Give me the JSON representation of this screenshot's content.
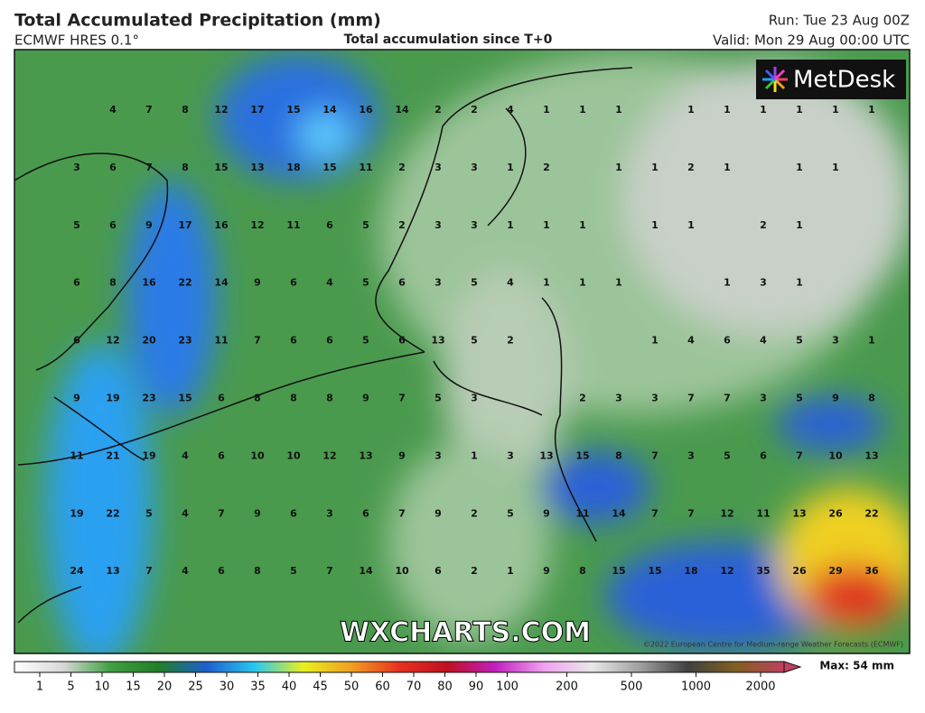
{
  "header": {
    "title": "Total Accumulated Precipitation (mm)",
    "model": "ECMWF HRES 0.1°",
    "subtitle": "Total accumulation since T+0",
    "run": "Run: Tue 23 Aug 00Z",
    "valid": "Valid: Mon 29 Aug 00:00 UTC"
  },
  "logo": "MetDesk",
  "watermark": "WXCHARTS.COM",
  "copyright": "©2022 European Centre for Medium-range Weather Forecasts (ECMWF)",
  "grid": {
    "rows": [
      [
        null,
        4,
        7,
        8,
        12,
        17,
        15,
        14,
        16,
        14,
        2,
        2,
        4,
        1,
        1,
        1,
        null,
        1,
        1,
        1,
        1,
        1,
        1
      ],
      [
        3,
        6,
        7,
        8,
        15,
        13,
        18,
        15,
        11,
        2,
        3,
        3,
        1,
        2,
        null,
        1,
        1,
        2,
        1,
        null,
        1,
        1,
        null
      ],
      [
        5,
        6,
        9,
        17,
        16,
        12,
        11,
        6,
        5,
        2,
        3,
        3,
        1,
        1,
        1,
        null,
        1,
        1,
        null,
        2,
        1,
        null,
        null
      ],
      [
        6,
        8,
        16,
        22,
        14,
        9,
        6,
        4,
        5,
        6,
        3,
        5,
        4,
        1,
        1,
        1,
        null,
        null,
        1,
        3,
        1,
        null,
        null
      ],
      [
        6,
        12,
        20,
        23,
        11,
        7,
        6,
        6,
        5,
        6,
        13,
        5,
        2,
        null,
        null,
        null,
        1,
        4,
        6,
        4,
        5,
        3,
        1
      ],
      [
        9,
        19,
        23,
        15,
        6,
        8,
        8,
        8,
        9,
        7,
        5,
        3,
        null,
        null,
        2,
        3,
        3,
        7,
        7,
        3,
        5,
        9,
        8
      ],
      [
        11,
        21,
        19,
        4,
        6,
        10,
        10,
        12,
        13,
        9,
        3,
        1,
        3,
        13,
        15,
        8,
        7,
        3,
        5,
        6,
        7,
        10,
        13
      ],
      [
        19,
        22,
        5,
        4,
        7,
        9,
        6,
        3,
        6,
        7,
        9,
        2,
        5,
        9,
        11,
        14,
        7,
        7,
        12,
        11,
        13,
        26,
        22
      ],
      [
        24,
        13,
        7,
        4,
        6,
        8,
        5,
        7,
        14,
        10,
        6,
        2,
        1,
        9,
        8,
        15,
        15,
        18,
        12,
        35,
        26,
        29,
        36
      ]
    ]
  },
  "legend": {
    "ticks": [
      1,
      5,
      10,
      15,
      20,
      25,
      30,
      35,
      40,
      45,
      50,
      60,
      70,
      80,
      90,
      100,
      200,
      500,
      1000,
      2000
    ],
    "colors": [
      "#ffffff",
      "#d8d8d8",
      "#3fa040",
      "#1f7f28",
      "#1e5fd0",
      "#28c8f0",
      "#e8f020",
      "#f0a020",
      "#e83020",
      "#c01020",
      "#c020c0",
      "#f0a0f0",
      "#e8e8e8",
      "#a0a0a0",
      "#404040",
      "#806020",
      "#c04060"
    ],
    "max_label": "Max: 54 mm"
  }
}
